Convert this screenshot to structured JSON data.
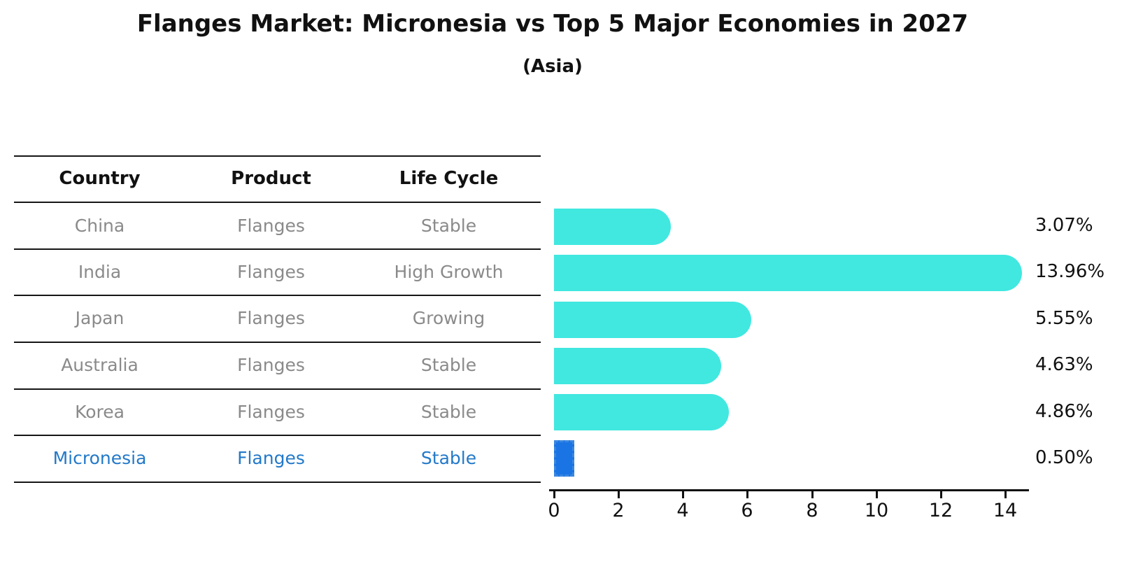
{
  "title": "Flanges Market: Micronesia vs Top 5 Major Economies in 2027",
  "subtitle": "(Asia)",
  "table": {
    "headers": [
      "Country",
      "Product",
      "Life Cycle"
    ],
    "rows": [
      {
        "country": "China",
        "product": "Flanges",
        "life_cycle": "Stable"
      },
      {
        "country": "India",
        "product": "Flanges",
        "life_cycle": "High Growth"
      },
      {
        "country": "Japan",
        "product": "Flanges",
        "life_cycle": "Growing"
      },
      {
        "country": "Australia",
        "product": "Flanges",
        "life_cycle": "Stable"
      },
      {
        "country": "Korea",
        "product": "Flanges",
        "life_cycle": "Stable"
      },
      {
        "country": "Micronesia",
        "product": "Flanges",
        "life_cycle": "Stable"
      }
    ]
  },
  "chart_data": {
    "type": "bar",
    "orientation": "horizontal",
    "title": "Flanges Market: Micronesia vs Top 5 Major Economies in 2027",
    "subtitle": "(Asia)",
    "categories": [
      "China",
      "India",
      "Japan",
      "Australia",
      "Korea",
      "Micronesia"
    ],
    "values": [
      3.07,
      13.96,
      5.55,
      4.63,
      4.86,
      0.5
    ],
    "value_labels": [
      "3.07%",
      "13.96%",
      "5.55%",
      "4.63%",
      "4.86%",
      "0.50%"
    ],
    "xticks": [
      "0",
      "2",
      "4",
      "6",
      "8",
      "10",
      "12",
      "14"
    ],
    "xlim": [
      0,
      14.75
    ],
    "grid": false,
    "legend": "none",
    "highlight_index": 5,
    "colors": {
      "bar": "#40e8e0",
      "highlight_bar": "#1b74e4",
      "highlight_edge": "#3a87e0",
      "highlight_text": "#2379c9",
      "row_text": "#8a8a8a",
      "axis": "#111111"
    }
  }
}
